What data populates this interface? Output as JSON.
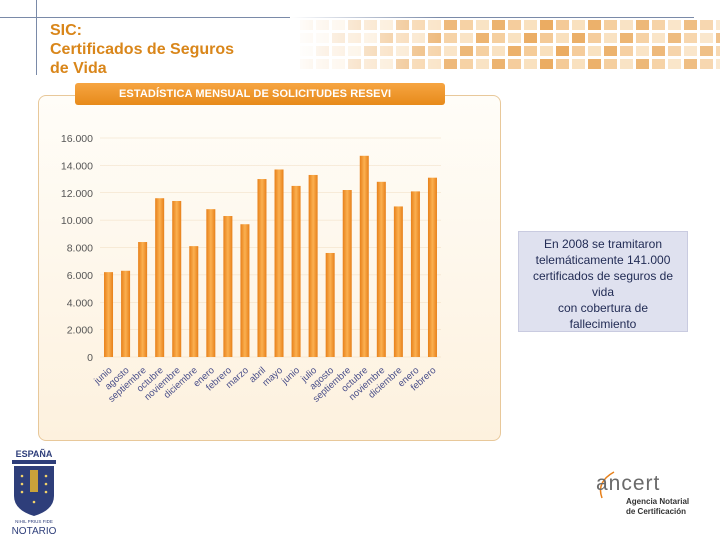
{
  "header": {
    "title_lines": [
      "SIC:",
      "Certificados de Seguros",
      "de Vida"
    ],
    "accent_color": "#d9861a"
  },
  "chart_data": {
    "type": "bar",
    "title": "ESTADÍSTICA MENSUAL DE SOLICITUDES RESEVI",
    "categories": [
      "junio",
      "agosto",
      "septiembre",
      "octubre",
      "noviembre",
      "diciembre",
      "enero",
      "febrero",
      "marzo",
      "abril",
      "mayo",
      "junio",
      "julio",
      "agosto",
      "septiembre",
      "octubre",
      "noviembre",
      "diciembre",
      "enero",
      "febrero"
    ],
    "values": [
      6200,
      6300,
      8400,
      11600,
      11400,
      8100,
      10800,
      10300,
      9700,
      13000,
      13700,
      12500,
      13300,
      7600,
      12200,
      14700,
      12800,
      11000,
      12100,
      13100
    ],
    "y_ticks": [
      "0",
      "2.000",
      "4.000",
      "6.000",
      "8.000",
      "10.000",
      "12.000",
      "14.000",
      "16.000"
    ],
    "ylim": [
      0,
      16000
    ],
    "bar_color": "#f29a2e",
    "xlabel": "",
    "ylabel": ""
  },
  "note": {
    "lines": [
      "En 2008 se tramitaron",
      "telemáticamente 141.000",
      "certificados de seguros de",
      "vida",
      "con cobertura de",
      "fallecimiento"
    ]
  },
  "emblem": {
    "top_text": "ESPAÑA",
    "motto": "NIHIL PRIUS FIDE",
    "bottom_text": "NOTARIO"
  },
  "ancert": {
    "logo_text": "ancert",
    "subtitle_lines": [
      "Agencia Notarial",
      "de Certificación"
    ]
  }
}
